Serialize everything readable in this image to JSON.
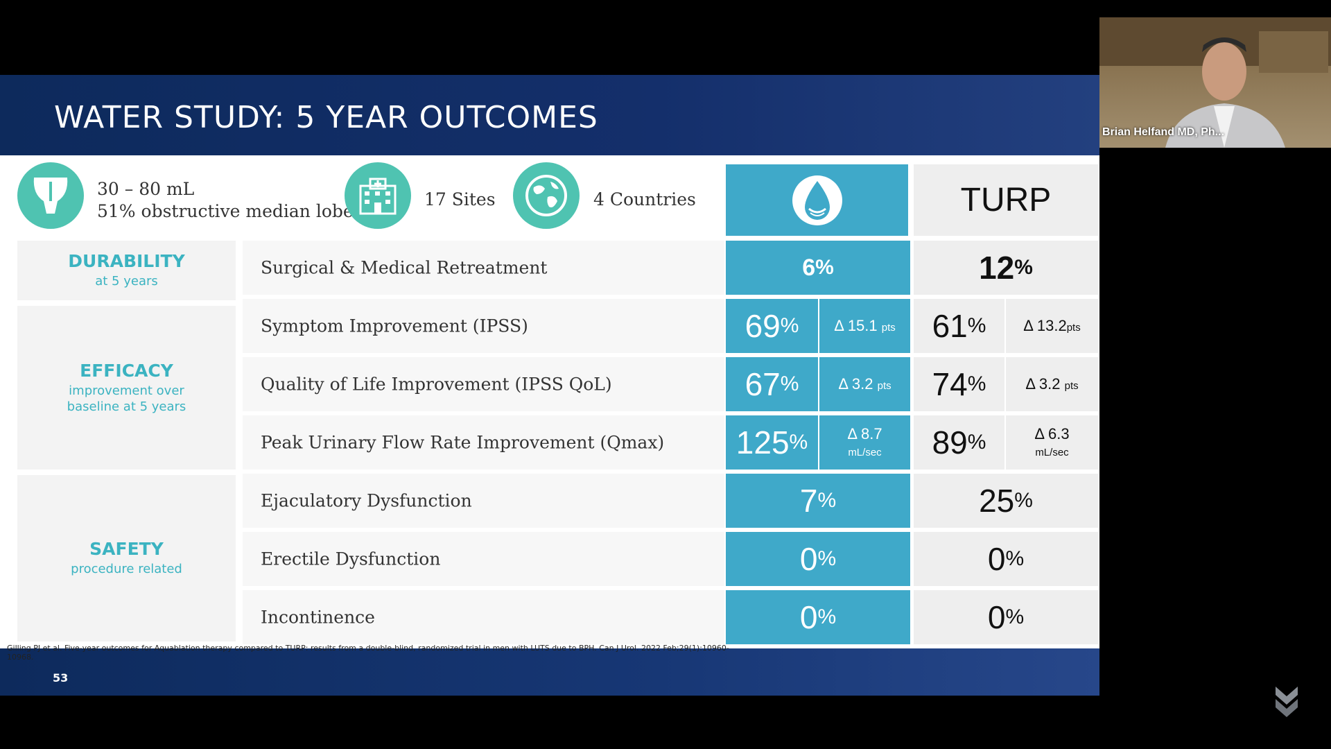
{
  "slide": {
    "title": "WATER STUDY: 5 YEAR OUTCOMES",
    "info": {
      "volume_line1": "30 – 80 mL",
      "volume_line2": "51% obstructive median lobe",
      "sites": "17 Sites",
      "countries": "4 Countries"
    },
    "columns": {
      "aquablation_icon": "water-drop-icon",
      "turp_label": "TURP"
    },
    "categories": {
      "durability": {
        "title": "DURABILITY",
        "sub": "at 5 years"
      },
      "efficacy": {
        "title": "EFFICACY",
        "sub1": "improvement over",
        "sub2": "baseline at 5 years"
      },
      "safety": {
        "title": "SAFETY",
        "sub": "procedure related"
      }
    },
    "rows": [
      {
        "label": "Surgical & Medical Retreatment",
        "aq": "6",
        "aq_unit": "%",
        "turp": "12",
        "turp_unit": "%"
      },
      {
        "label": "Symptom Improvement (IPSS)",
        "aq": "69",
        "aq_unit": "%",
        "aq_delta": "Δ 15.1",
        "aq_delta_unit": "pts",
        "turp": "61",
        "turp_unit": "%",
        "turp_delta": "Δ 13.2",
        "turp_delta_unit": "pts"
      },
      {
        "label": "Quality of Life Improvement (IPSS QoL)",
        "aq": "67",
        "aq_unit": "%",
        "aq_delta": "Δ 3.2",
        "aq_delta_unit": "pts",
        "turp": "74",
        "turp_unit": "%",
        "turp_delta": "Δ 3.2",
        "turp_delta_unit": "pts"
      },
      {
        "label": "Peak Urinary Flow Rate Improvement (Qmax)",
        "aq": "125",
        "aq_unit": "%",
        "aq_delta": "Δ 8.7",
        "aq_delta_unit": "mL/sec",
        "turp": "89",
        "turp_unit": "%",
        "turp_delta": "Δ 6.3",
        "turp_delta_unit": "mL/sec"
      },
      {
        "label": "Ejaculatory Dysfunction",
        "aq": "7",
        "aq_unit": "%",
        "turp": "25",
        "turp_unit": "%"
      },
      {
        "label": "Erectile Dysfunction",
        "aq": "0",
        "aq_unit": "%",
        "turp": "0",
        "turp_unit": "%"
      },
      {
        "label": "Incontinence",
        "aq": "0",
        "aq_unit": "%",
        "turp": "0",
        "turp_unit": "%"
      }
    ],
    "citation": "Gilling PJ et al. Five-year outcomes for Aquablation therapy compared to TURP: results from a double-blind, randomized trial in men with LUTS due to BPH. Can J Urol. 2022 Feb;29(1):10960-10968.",
    "page_number": "53"
  },
  "participant": {
    "name": "Brian Helfand MD, Ph..."
  },
  "colors": {
    "teal": "#4fc3b1",
    "aquablation_blue": "#3fa9c9",
    "header_navy": "#0d2a5c"
  }
}
